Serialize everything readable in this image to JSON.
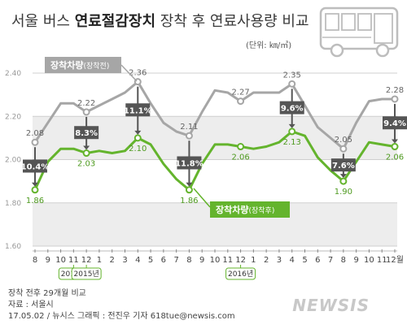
{
  "title_plain": "서울 버스 ",
  "title_bold": "연료절감장치",
  "title_rest": " 장착 후 연료사용량 비교",
  "unit": "(단위: ㎞/㎥)",
  "footnotes": [
    "장착 전후 29개월 비교",
    "자료 : 서울시",
    "17.05.02 / 뉴시스 그래픽 : 전진우 기자 618tue@newsis.com"
  ],
  "brand": "NEWSIS",
  "colors": {
    "before": "#a6a6a6",
    "after": "#64b42d",
    "pct_box": "#555555",
    "arrow": "#555555"
  },
  "chart_data": {
    "type": "line",
    "x": [
      "8",
      "9",
      "10",
      "11",
      "12",
      "1",
      "2",
      "3",
      "4",
      "5",
      "6",
      "7",
      "8",
      "9",
      "10",
      "11",
      "12",
      "1",
      "2",
      "3",
      "4",
      "5",
      "6",
      "7",
      "8",
      "9",
      "10",
      "11",
      "12월"
    ],
    "year_markers": [
      {
        "label": "2014년",
        "index": 3
      },
      {
        "label": "2015년",
        "index": 4
      },
      {
        "label": "2016년",
        "index": 16
      }
    ],
    "ylim": [
      1.6,
      2.4
    ],
    "yticks": [
      "1.60",
      "1.80",
      "2.00",
      "2.20",
      "2.40"
    ],
    "series": [
      {
        "name": "장착차량",
        "name_sub": "(장착전)",
        "values": [
          2.08,
          2.17,
          2.26,
          2.26,
          2.22,
          2.25,
          2.28,
          2.31,
          2.36,
          2.26,
          2.17,
          2.13,
          2.11,
          2.22,
          2.32,
          2.31,
          2.27,
          2.31,
          2.31,
          2.31,
          2.35,
          2.25,
          2.15,
          2.1,
          2.05,
          2.17,
          2.27,
          2.28,
          2.28
        ]
      },
      {
        "name": "장착차량",
        "name_sub": "(장착후)",
        "values": [
          1.86,
          1.99,
          2.05,
          2.05,
          2.03,
          2.04,
          2.03,
          2.04,
          2.1,
          2.07,
          1.98,
          1.91,
          1.86,
          1.98,
          2.07,
          2.07,
          2.06,
          2.05,
          2.06,
          2.08,
          2.13,
          2.11,
          2.01,
          1.95,
          1.9,
          1.99,
          2.08,
          2.07,
          2.06
        ]
      }
    ],
    "point_labels": [
      {
        "index": 0,
        "before": "2.08",
        "after": "1.86",
        "pct": "10.4%"
      },
      {
        "index": 4,
        "before": "2.22",
        "after": "2.03",
        "pct": "8.3%"
      },
      {
        "index": 8,
        "before": "2.36",
        "after": "2.10",
        "pct": "11.1%"
      },
      {
        "index": 12,
        "before": "2.11",
        "after": "1.86",
        "pct": "11.8%"
      },
      {
        "index": 16,
        "before": "2.27",
        "after": "2.06"
      },
      {
        "index": 20,
        "before": "2.35",
        "after": "2.13",
        "pct": "9.6%"
      },
      {
        "index": 24,
        "before": "2.05",
        "after": "1.90",
        "pct": "7.6%"
      },
      {
        "index": 28,
        "before": "2.28",
        "after": "2.06",
        "pct": "9.4%"
      }
    ]
  }
}
